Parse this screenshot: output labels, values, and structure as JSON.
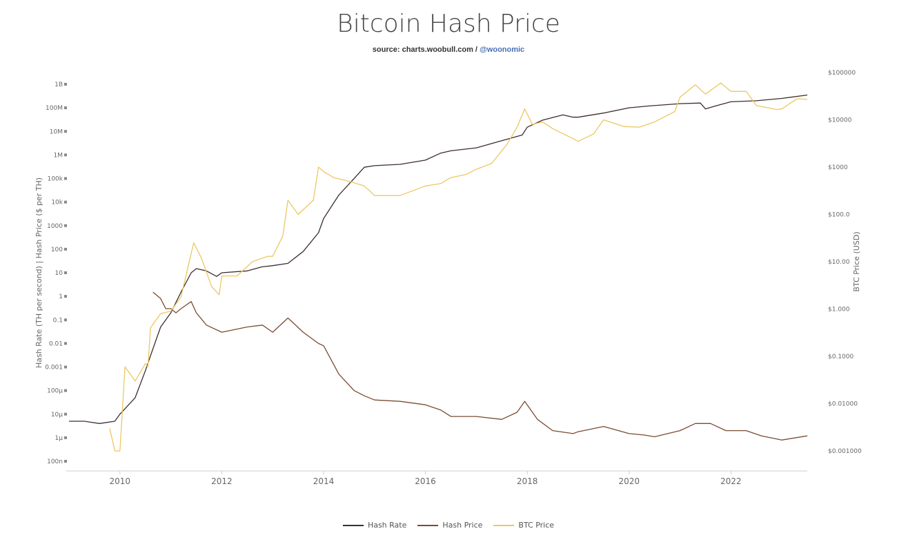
{
  "chart_data": {
    "type": "line",
    "title": "Bitcoin Hash Price",
    "subtitle_source": "source: charts.woobull.com /",
    "subtitle_handle": "@woonomic",
    "ylabel_left": "Hash Rate (TH per second) | Hash Price ($ per TH)",
    "ylabel_right": "BTC Price (USD)",
    "y_left_scale": "log",
    "y_right_scale": "log",
    "ylim_left": [
      1e-07,
      1000000000.0
    ],
    "ylim_right": [
      0.001,
      100000
    ],
    "xlim": [
      2009.0,
      2023.5
    ],
    "x_ticks": [
      2010,
      2012,
      2014,
      2016,
      2018,
      2020,
      2022
    ],
    "x_tick_labels": [
      "2010",
      "2012",
      "2014",
      "2016",
      "2018",
      "2020",
      "2022"
    ],
    "y_left_ticks": [
      {
        "value": 1000000000.0,
        "label": "1B"
      },
      {
        "value": 100000000.0,
        "label": "100M"
      },
      {
        "value": 10000000.0,
        "label": "10M"
      },
      {
        "value": 1000000.0,
        "label": "1M"
      },
      {
        "value": 100000.0,
        "label": "100k"
      },
      {
        "value": 10000.0,
        "label": "10k"
      },
      {
        "value": 1000.0,
        "label": "1000"
      },
      {
        "value": 100,
        "label": "100"
      },
      {
        "value": 10,
        "label": "10"
      },
      {
        "value": 1,
        "label": "1"
      },
      {
        "value": 0.1,
        "label": "0.1"
      },
      {
        "value": 0.01,
        "label": "0.01"
      },
      {
        "value": 0.001,
        "label": "0.001"
      },
      {
        "value": 0.0001,
        "label": "100µ"
      },
      {
        "value": 1e-05,
        "label": "10µ"
      },
      {
        "value": 1e-06,
        "label": "1µ"
      },
      {
        "value": 1e-07,
        "label": "100n"
      }
    ],
    "y_right_ticks": [
      {
        "value": 100000,
        "label": "$100000"
      },
      {
        "value": 10000,
        "label": "$10000"
      },
      {
        "value": 1000,
        "label": "$1000"
      },
      {
        "value": 100,
        "label": "$100.0"
      },
      {
        "value": 10,
        "label": "$10.00"
      },
      {
        "value": 1,
        "label": "$1.000"
      },
      {
        "value": 0.1,
        "label": "$0.1000"
      },
      {
        "value": 0.01,
        "label": "$0.01000"
      },
      {
        "value": 0.001,
        "label": "$0.001000"
      }
    ],
    "legend_position": "bottom",
    "grid": false,
    "series": [
      {
        "name": "Hash Rate",
        "axis": "left",
        "color": "#3d2b2b",
        "x": [
          2009.0,
          2009.3,
          2009.6,
          2009.9,
          2010.0,
          2010.3,
          2010.5,
          2010.6,
          2010.8,
          2011.0,
          2011.2,
          2011.4,
          2011.5,
          2011.7,
          2011.9,
          2012.0,
          2012.5,
          2012.8,
          2013.0,
          2013.3,
          2013.6,
          2013.9,
          2014.0,
          2014.3,
          2014.6,
          2014.8,
          2015.0,
          2015.5,
          2016.0,
          2016.3,
          2016.5,
          2017.0,
          2017.5,
          2017.9,
          2018.0,
          2018.3,
          2018.7,
          2018.9,
          2019.0,
          2019.5,
          2020.0,
          2020.4,
          2021.0,
          2021.4,
          2021.5,
          2021.7,
          2022.0,
          2022.5,
          2023.0,
          2023.5
        ],
        "y": [
          5e-06,
          5e-06,
          4e-06,
          5e-06,
          1e-05,
          5e-05,
          0.0007,
          0.003,
          0.05,
          0.2,
          1.5,
          10,
          15,
          12,
          7,
          10,
          12,
          18,
          20,
          25,
          80,
          500,
          2000,
          20000,
          100000,
          300000,
          350000,
          400000,
          600000,
          1200000,
          1500000,
          2000000,
          4000000,
          7000000,
          15000000,
          30000000,
          50000000,
          40000000,
          40000000,
          60000000,
          100000000,
          120000000,
          150000000,
          160000000,
          90000000,
          120000000,
          180000000,
          200000000,
          250000000,
          350000000
        ]
      },
      {
        "name": "Hash Price",
        "axis": "left",
        "color": "#7a4a30",
        "x": [
          2010.65,
          2010.8,
          2010.9,
          2011.0,
          2011.1,
          2011.2,
          2011.4,
          2011.5,
          2011.7,
          2012.0,
          2012.5,
          2012.8,
          2013.0,
          2013.3,
          2013.6,
          2013.9,
          2014.0,
          2014.3,
          2014.6,
          2014.8,
          2015.0,
          2015.5,
          2016.0,
          2016.3,
          2016.5,
          2017.0,
          2017.5,
          2017.8,
          2017.95,
          2018.2,
          2018.5,
          2018.9,
          2019.0,
          2019.5,
          2020.0,
          2020.3,
          2020.5,
          2021.0,
          2021.3,
          2021.6,
          2021.9,
          2022.3,
          2022.6,
          2023.0,
          2023.5
        ],
        "y": [
          1.5,
          0.8,
          0.3,
          0.3,
          0.2,
          0.3,
          0.6,
          0.2,
          0.06,
          0.03,
          0.05,
          0.06,
          0.03,
          0.12,
          0.03,
          0.01,
          0.008,
          0.0005,
          0.0001,
          6e-05,
          4e-05,
          3.5e-05,
          2.5e-05,
          1.5e-05,
          8e-06,
          8e-06,
          6e-06,
          1.2e-05,
          3.5e-05,
          6e-06,
          2e-06,
          1.5e-06,
          1.8e-06,
          3e-06,
          1.5e-06,
          1.3e-06,
          1.1e-06,
          2e-06,
          4e-06,
          4e-06,
          2e-06,
          2e-06,
          1.2e-06,
          8e-07,
          1.2e-06
        ]
      },
      {
        "name": "BTC Price",
        "axis": "right",
        "color": "#ecc760",
        "x": [
          2009.8,
          2009.9,
          2010.0,
          2010.1,
          2010.3,
          2010.5,
          2010.55,
          2010.6,
          2010.8,
          2011.0,
          2011.2,
          2011.4,
          2011.45,
          2011.6,
          2011.8,
          2011.95,
          2012.0,
          2012.3,
          2012.6,
          2012.9,
          2013.0,
          2013.2,
          2013.3,
          2013.5,
          2013.8,
          2013.9,
          2014.0,
          2014.2,
          2014.5,
          2014.8,
          2015.0,
          2015.5,
          2016.0,
          2016.3,
          2016.5,
          2016.8,
          2017.0,
          2017.3,
          2017.6,
          2017.8,
          2017.95,
          2018.1,
          2018.3,
          2018.5,
          2018.9,
          2019.0,
          2019.3,
          2019.5,
          2019.9,
          2020.2,
          2020.5,
          2020.9,
          2021.0,
          2021.3,
          2021.5,
          2021.8,
          2022.0,
          2022.3,
          2022.5,
          2022.9,
          2023.0,
          2023.3,
          2023.5
        ],
        "y": [
          0.003,
          0.001,
          0.001,
          0.06,
          0.03,
          0.07,
          0.06,
          0.4,
          0.8,
          0.9,
          1.8,
          15,
          25,
          12,
          3,
          2,
          5,
          5,
          10,
          13,
          13,
          35,
          200,
          100,
          200,
          1000,
          800,
          600,
          500,
          400,
          250,
          250,
          400,
          450,
          600,
          700,
          900,
          1200,
          3000,
          7000,
          17000,
          8000,
          9000,
          6500,
          4000,
          3500,
          5000,
          10000,
          7200,
          7000,
          9000,
          15000,
          30000,
          55000,
          35000,
          60000,
          40000,
          40000,
          20000,
          16500,
          17000,
          28000,
          27000
        ]
      }
    ]
  },
  "legend": {
    "hash_rate": "Hash Rate",
    "hash_price": "Hash Price",
    "btc_price": "BTC Price"
  }
}
